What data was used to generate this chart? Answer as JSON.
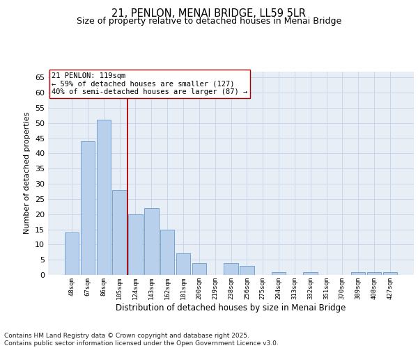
{
  "title1": "21, PENLON, MENAI BRIDGE, LL59 5LR",
  "title2": "Size of property relative to detached houses in Menai Bridge",
  "xlabel": "Distribution of detached houses by size in Menai Bridge",
  "ylabel": "Number of detached properties",
  "categories": [
    "48sqm",
    "67sqm",
    "86sqm",
    "105sqm",
    "124sqm",
    "143sqm",
    "162sqm",
    "181sqm",
    "200sqm",
    "219sqm",
    "238sqm",
    "256sqm",
    "275sqm",
    "294sqm",
    "313sqm",
    "332sqm",
    "351sqm",
    "370sqm",
    "389sqm",
    "408sqm",
    "427sqm"
  ],
  "values": [
    14,
    44,
    51,
    28,
    20,
    22,
    15,
    7,
    4,
    0,
    4,
    3,
    0,
    1,
    0,
    1,
    0,
    0,
    1,
    1,
    1
  ],
  "bar_color": "#b8d0eb",
  "bar_edge_color": "#6699cc",
  "grid_color": "#c8d8ea",
  "bg_color": "#e8eef6",
  "vline_x": 3.5,
  "vline_color": "#aa0000",
  "annotation_text": "21 PENLON: 119sqm\n← 59% of detached houses are smaller (127)\n40% of semi-detached houses are larger (87) →",
  "annotation_box_color": "#ffffff",
  "annotation_box_edge": "#aa0000",
  "ylim": [
    0,
    67
  ],
  "yticks": [
    0,
    5,
    10,
    15,
    20,
    25,
    30,
    35,
    40,
    45,
    50,
    55,
    60,
    65
  ],
  "footer_text": "Contains HM Land Registry data © Crown copyright and database right 2025.\nContains public sector information licensed under the Open Government Licence v3.0.",
  "title_fontsize": 10.5,
  "subtitle_fontsize": 9,
  "ylabel_fontsize": 8,
  "xlabel_fontsize": 8.5,
  "annotation_fontsize": 7.5,
  "xtick_fontsize": 6.5,
  "ytick_fontsize": 8,
  "footer_fontsize": 6.5
}
